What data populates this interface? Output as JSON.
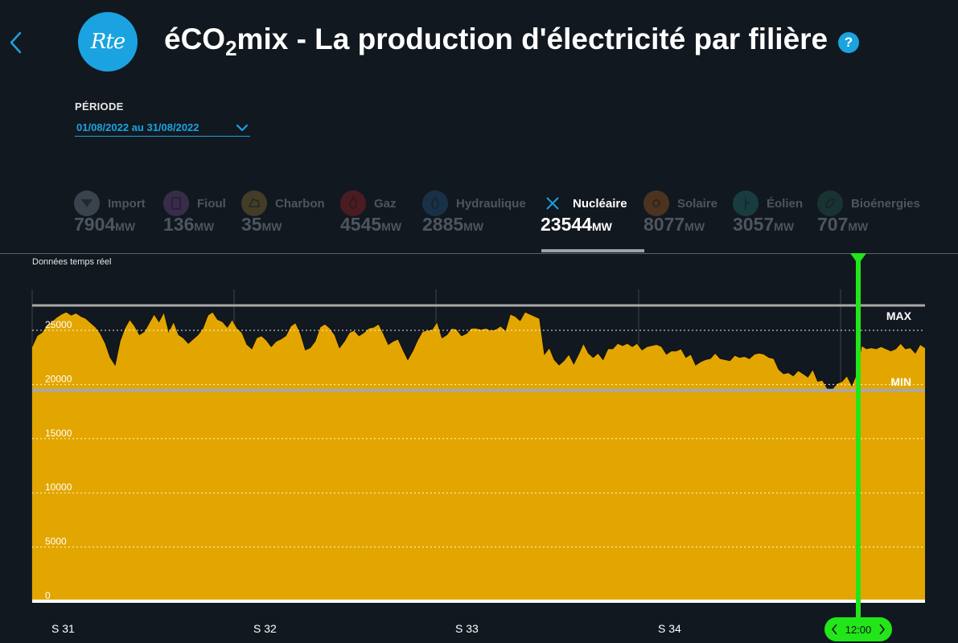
{
  "header": {
    "title_pre": "éCO",
    "title_sub": "2",
    "title_post": "mix - La production d'électricité par filière",
    "logo_text": "Rte",
    "help_label": "?"
  },
  "period": {
    "label": "PÉRIODE",
    "value": "01/08/2022 au 31/08/2022"
  },
  "sources": [
    {
      "key": "import",
      "name": "Import",
      "value": "7904",
      "unit": "MW",
      "color": "#596573",
      "icon": "import-icon",
      "active": false
    },
    {
      "key": "fioul",
      "name": "Fioul",
      "value": "136",
      "unit": "MW",
      "color": "#5a3d6e",
      "icon": "fuel-icon",
      "active": false
    },
    {
      "key": "charbon",
      "name": "Charbon",
      "value": "35",
      "unit": "MW",
      "color": "#6b5a2e",
      "icon": "coal-icon",
      "active": false
    },
    {
      "key": "gaz",
      "name": "Gaz",
      "value": "4545",
      "unit": "MW",
      "color": "#7a1f26",
      "icon": "flame-icon",
      "active": false
    },
    {
      "key": "hydraulique",
      "name": "Hydraulique",
      "value": "2885",
      "unit": "MW",
      "color": "#1d4768",
      "icon": "water-drop-icon",
      "active": false
    },
    {
      "key": "nucleaire",
      "name": "Nucléaire",
      "value": "23544",
      "unit": "MW",
      "color": "#1aa3e0",
      "icon": "close-icon",
      "active": true
    },
    {
      "key": "solaire",
      "name": "Solaire",
      "value": "8077",
      "unit": "MW",
      "color": "#7a4a1f",
      "icon": "sun-icon",
      "active": false
    },
    {
      "key": "eolien",
      "name": "Éolien",
      "value": "3057",
      "unit": "MW",
      "color": "#1f5a5a",
      "icon": "wind-turbine-icon",
      "active": false
    },
    {
      "key": "bioenergies",
      "name": "Bioénergies",
      "value": "707",
      "unit": "MW",
      "color": "#1f4a44",
      "icon": "leaf-icon",
      "active": false
    }
  ],
  "chart_caption": "Données temps réel",
  "cursor_label": "12:00",
  "colors": {
    "area": "#e3a600",
    "line": "#111111",
    "accent": "#1aa3e0",
    "cursor": "#22e51a",
    "refline": "#a8a8a8"
  },
  "chart_data": {
    "type": "area",
    "series": [
      {
        "values": [
          23500,
          24500,
          24800,
          25500,
          25800,
          26200,
          26500,
          26700,
          26400,
          26600,
          26300,
          26100,
          25700,
          25300,
          24700,
          23800,
          22500,
          21800,
          24000,
          25200,
          26000,
          25400,
          24600,
          24900,
          25700,
          26500,
          25800,
          26700,
          24900,
          25800,
          24600,
          24300,
          23800,
          24200,
          24600,
          25200,
          26400,
          26700,
          26000,
          25800,
          25300,
          26000,
          25200,
          24800,
          23700,
          23300,
          24300,
          24500,
          24100,
          23500,
          24000,
          24200,
          24500,
          25400,
          25700,
          24700,
          23200,
          23400,
          24000,
          25300,
          25600,
          25200,
          24600,
          23400,
          24000,
          24800,
          25000,
          24500,
          24800,
          25200,
          25300,
          25600,
          24700,
          23700,
          24000,
          24200,
          23200,
          22300,
          23100,
          24100,
          24900,
          25000,
          25100,
          25800,
          24300,
          24600,
          25200,
          25100,
          24500,
          24700,
          25200,
          25200,
          25100,
          25200,
          25000,
          25100,
          25400,
          25000,
          26500,
          26300,
          25900,
          26700,
          26500,
          26300,
          26100,
          22800,
          23400,
          22300,
          21800,
          22200,
          22800,
          21900,
          22800,
          23800,
          22900,
          22500,
          22900,
          22300,
          23300,
          23300,
          23800,
          23600,
          23800,
          23500,
          23800,
          23200,
          23500,
          23600,
          23700,
          23500,
          22800,
          23100,
          23100,
          23300,
          22500,
          22800,
          21800,
          22100,
          22300,
          22400,
          22900,
          22400,
          22300,
          22200,
          22700,
          22500,
          22600,
          22400,
          22800,
          22900,
          22800,
          22500,
          22400,
          21400,
          21000,
          21100,
          20800,
          21300,
          21000,
          20700,
          21400,
          20300,
          20400,
          19600,
          19600,
          20100,
          20300,
          20800,
          19900,
          21000,
          23600,
          23300,
          23400,
          23300,
          23500,
          23300,
          23100,
          23300,
          23800,
          23300,
          23400,
          22900,
          23700,
          23400
        ]
      }
    ],
    "x_ticks": [
      "S 31",
      "S 32",
      "S 33",
      "S 34"
    ],
    "y_ticks": [
      0,
      5000,
      10000,
      15000,
      20000,
      25000
    ],
    "ylim": [
      0,
      27300
    ],
    "max_value": 27300,
    "max_label": "MAX",
    "min_value": 19600,
    "min_label": "MIN",
    "grid": "horizontal-dotted"
  }
}
